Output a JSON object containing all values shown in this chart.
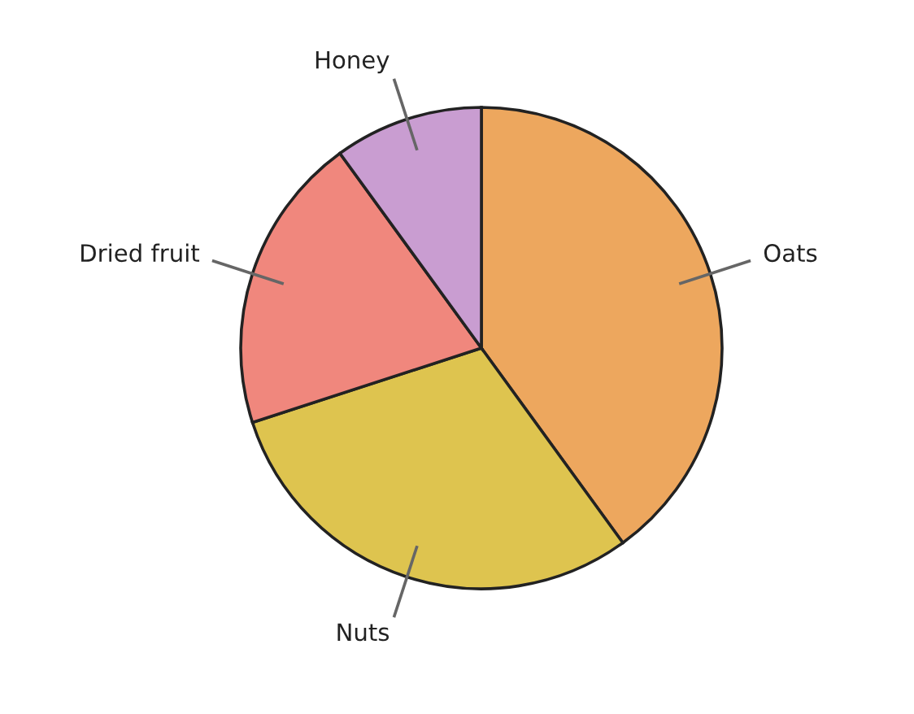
{
  "chart_data": {
    "type": "pie",
    "categories": [
      "Oats",
      "Nuts",
      "Dried fruit",
      "Honey"
    ],
    "values": [
      40,
      30,
      20,
      10
    ],
    "colors": [
      "#eda75e",
      "#dec44f",
      "#f0877d",
      "#c99dd1"
    ],
    "legend": false
  }
}
